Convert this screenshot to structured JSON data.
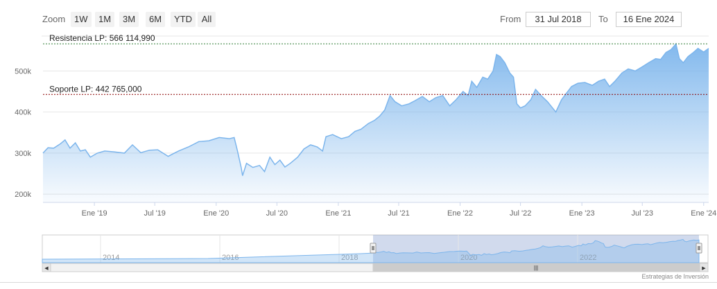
{
  "toolbar": {
    "zoom_label": "Zoom",
    "zoom_buttons": [
      "1W",
      "1M",
      "3M",
      "6M",
      "YTD",
      "All"
    ],
    "from_label": "From",
    "from_value": "31 Jul 2018",
    "to_label": "To",
    "to_value": "16 Ene 2024"
  },
  "credit": "Estrategias de Inversión",
  "navigator": {
    "year_labels": [
      "2014",
      "2016",
      "2018",
      "2020",
      "2022"
    ],
    "left_arrow": "◀",
    "right_arrow": "▶",
    "grip": "|||"
  },
  "colors": {
    "series": "#7cb5ec",
    "resistance": "#2e7d32",
    "support": "#8b0000",
    "grid": "#e6e6e6"
  },
  "chart_data": {
    "type": "area",
    "title": "",
    "xlabel": "",
    "ylabel": "",
    "x_range": [
      "2018-07-31",
      "2024-01-16"
    ],
    "ylim": [
      180000,
      585000
    ],
    "y_ticks": [
      200000,
      300000,
      400000,
      500000
    ],
    "y_tick_labels": [
      "200k",
      "300k",
      "400k",
      "500k"
    ],
    "x_ticks": [
      {
        "date": "2019-01-01",
        "label": "Ene '19"
      },
      {
        "date": "2019-07-01",
        "label": "Jul '19"
      },
      {
        "date": "2020-01-01",
        "label": "Ene '20"
      },
      {
        "date": "2020-07-01",
        "label": "Jul '20"
      },
      {
        "date": "2021-01-01",
        "label": "Ene '21"
      },
      {
        "date": "2021-07-01",
        "label": "Jul '21"
      },
      {
        "date": "2022-01-01",
        "label": "Ene '22"
      },
      {
        "date": "2022-07-01",
        "label": "Jul '22"
      },
      {
        "date": "2023-01-01",
        "label": "Ene '23"
      },
      {
        "date": "2023-07-01",
        "label": "Jul '23"
      },
      {
        "date": "2024-01-01",
        "label": "Ene '24"
      }
    ],
    "grid": true,
    "series": [
      {
        "points": [
          [
            "2018-07-31",
            300000
          ],
          [
            "2018-08-15",
            313000
          ],
          [
            "2018-09-01",
            312000
          ],
          [
            "2018-09-20",
            322000
          ],
          [
            "2018-10-05",
            332000
          ],
          [
            "2018-10-20",
            312000
          ],
          [
            "2018-11-05",
            325000
          ],
          [
            "2018-11-20",
            305000
          ],
          [
            "2018-12-05",
            308000
          ],
          [
            "2018-12-20",
            290000
          ],
          [
            "2019-01-10",
            300000
          ],
          [
            "2019-02-01",
            305000
          ],
          [
            "2019-03-01",
            303000
          ],
          [
            "2019-04-01",
            300000
          ],
          [
            "2019-04-25",
            320000
          ],
          [
            "2019-05-20",
            301000
          ],
          [
            "2019-06-15",
            307000
          ],
          [
            "2019-07-10",
            308000
          ],
          [
            "2019-08-10",
            292000
          ],
          [
            "2019-09-10",
            305000
          ],
          [
            "2019-10-10",
            315000
          ],
          [
            "2019-11-10",
            328000
          ],
          [
            "2019-12-10",
            330000
          ],
          [
            "2020-01-10",
            338000
          ],
          [
            "2020-02-10",
            335000
          ],
          [
            "2020-02-24",
            338000
          ],
          [
            "2020-03-05",
            305000
          ],
          [
            "2020-03-16",
            265000
          ],
          [
            "2020-03-20",
            245000
          ],
          [
            "2020-04-01",
            275000
          ],
          [
            "2020-04-20",
            265000
          ],
          [
            "2020-05-10",
            270000
          ],
          [
            "2020-05-25",
            255000
          ],
          [
            "2020-06-10",
            290000
          ],
          [
            "2020-06-25",
            272000
          ],
          [
            "2020-07-10",
            283000
          ],
          [
            "2020-07-25",
            266000
          ],
          [
            "2020-08-10",
            275000
          ],
          [
            "2020-09-01",
            290000
          ],
          [
            "2020-09-20",
            310000
          ],
          [
            "2020-10-10",
            320000
          ],
          [
            "2020-10-30",
            315000
          ],
          [
            "2020-11-15",
            305000
          ],
          [
            "2020-11-25",
            340000
          ],
          [
            "2020-12-15",
            345000
          ],
          [
            "2021-01-10",
            335000
          ],
          [
            "2021-02-01",
            340000
          ],
          [
            "2021-02-20",
            353000
          ],
          [
            "2021-03-10",
            358000
          ],
          [
            "2021-04-01",
            372000
          ],
          [
            "2021-04-20",
            380000
          ],
          [
            "2021-05-05",
            390000
          ],
          [
            "2021-05-20",
            405000
          ],
          [
            "2021-06-05",
            440000
          ],
          [
            "2021-06-20",
            425000
          ],
          [
            "2021-07-10",
            415000
          ],
          [
            "2021-08-01",
            420000
          ],
          [
            "2021-08-20",
            428000
          ],
          [
            "2021-09-10",
            438000
          ],
          [
            "2021-10-01",
            425000
          ],
          [
            "2021-10-20",
            435000
          ],
          [
            "2021-11-10",
            440000
          ],
          [
            "2021-12-01",
            415000
          ],
          [
            "2021-12-20",
            430000
          ],
          [
            "2022-01-10",
            450000
          ],
          [
            "2022-01-25",
            440000
          ],
          [
            "2022-02-05",
            475000
          ],
          [
            "2022-02-20",
            460000
          ],
          [
            "2022-03-10",
            485000
          ],
          [
            "2022-03-25",
            480000
          ],
          [
            "2022-04-10",
            500000
          ],
          [
            "2022-04-20",
            540000
          ],
          [
            "2022-05-01",
            535000
          ],
          [
            "2022-05-15",
            520000
          ],
          [
            "2022-05-30",
            495000
          ],
          [
            "2022-06-10",
            485000
          ],
          [
            "2022-06-20",
            420000
          ],
          [
            "2022-07-01",
            410000
          ],
          [
            "2022-07-15",
            415000
          ],
          [
            "2022-08-01",
            430000
          ],
          [
            "2022-08-15",
            455000
          ],
          [
            "2022-09-01",
            440000
          ],
          [
            "2022-09-20",
            425000
          ],
          [
            "2022-10-05",
            410000
          ],
          [
            "2022-10-15",
            400000
          ],
          [
            "2022-11-01",
            430000
          ],
          [
            "2022-11-15",
            445000
          ],
          [
            "2022-12-01",
            462000
          ],
          [
            "2022-12-20",
            470000
          ],
          [
            "2023-01-10",
            472000
          ],
          [
            "2023-02-01",
            465000
          ],
          [
            "2023-02-20",
            475000
          ],
          [
            "2023-03-10",
            480000
          ],
          [
            "2023-03-25",
            462000
          ],
          [
            "2023-04-10",
            475000
          ],
          [
            "2023-05-01",
            495000
          ],
          [
            "2023-05-20",
            505000
          ],
          [
            "2023-06-10",
            500000
          ],
          [
            "2023-07-01",
            510000
          ],
          [
            "2023-07-20",
            520000
          ],
          [
            "2023-08-10",
            530000
          ],
          [
            "2023-08-25",
            528000
          ],
          [
            "2023-09-10",
            545000
          ],
          [
            "2023-09-25",
            552000
          ],
          [
            "2023-10-10",
            566000
          ],
          [
            "2023-10-20",
            530000
          ],
          [
            "2023-11-01",
            520000
          ],
          [
            "2023-11-15",
            535000
          ],
          [
            "2023-12-01",
            545000
          ],
          [
            "2023-12-15",
            555000
          ],
          [
            "2024-01-01",
            546000
          ],
          [
            "2024-01-16",
            555000
          ]
        ]
      }
    ],
    "annotations": [
      {
        "label": "Resistencia LP: 566 114,990",
        "value": 566114.99
      },
      {
        "label": "Soporte LP: 442 765,000",
        "value": 442765
      }
    ]
  }
}
